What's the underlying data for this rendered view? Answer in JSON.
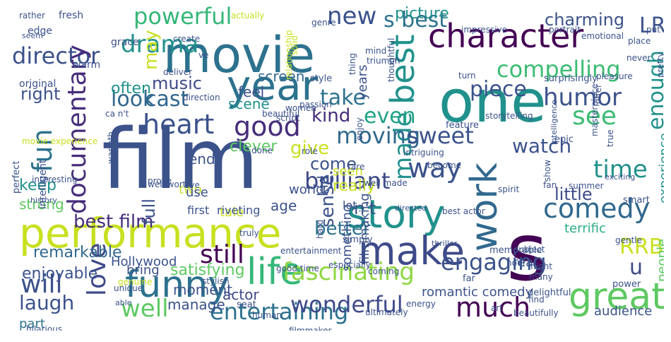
{
  "word_cloud": {
    "palette": [
      "#440154",
      "#472d7b",
      "#3b528b",
      "#2c728e",
      "#21918c",
      "#28ae80",
      "#5ec962",
      "#addc30",
      "#fde725"
    ],
    "words": [
      {
        "text": "film",
        "color": "#3b528b"
      },
      {
        "text": "movie",
        "color": "#2c728e"
      },
      {
        "text": "performance",
        "color": "#c8e020"
      },
      {
        "text": "one",
        "color": "#21918c"
      },
      {
        "text": "s",
        "color": "#440154"
      },
      {
        "text": "character",
        "color": "#440154"
      },
      {
        "text": "year",
        "color": "#2c728e"
      },
      {
        "text": "story",
        "color": "#21918c"
      },
      {
        "text": "work",
        "color": "#31688e"
      },
      {
        "text": "make",
        "color": "#3e4a89"
      },
      {
        "text": "funny",
        "color": "#2c728e"
      },
      {
        "text": "best",
        "color": "#21918c"
      },
      {
        "text": "life",
        "color": "#35b779"
      },
      {
        "text": "time",
        "color": "#21918c"
      },
      {
        "text": "heart",
        "color": "#3b528b"
      },
      {
        "text": "good",
        "color": "#472d7b"
      },
      {
        "text": "way",
        "color": "#3b528b"
      },
      {
        "text": "great",
        "color": "#5ec962"
      },
      {
        "text": "comedy",
        "color": "#31688e"
      },
      {
        "text": "love",
        "color": "#3e4a89"
      },
      {
        "text": "fascinating",
        "color": "#90d743"
      },
      {
        "text": "much",
        "color": "#440154"
      },
      {
        "text": "drama",
        "color": "#21918c"
      },
      {
        "text": "fun",
        "color": "#2c728e"
      },
      {
        "text": "director",
        "color": "#3b528b"
      },
      {
        "text": "documentary",
        "color": "#472d7b"
      },
      {
        "text": "entertaining",
        "color": "#2c728e"
      },
      {
        "text": "well",
        "color": "#5ec962"
      },
      {
        "text": "made",
        "color": "#21918c"
      },
      {
        "text": "look",
        "color": "#31688e"
      },
      {
        "text": "cast",
        "color": "#31688e"
      },
      {
        "text": "humor",
        "color": "#3b528b"
      },
      {
        "text": "see",
        "color": "#3dbc74"
      },
      {
        "text": "enough",
        "color": "#21918c"
      },
      {
        "text": "powerful",
        "color": "#35b779"
      },
      {
        "text": "new",
        "color": "#3b528b"
      },
      {
        "text": "s best",
        "color": "#2c728e"
      },
      {
        "text": "compelling",
        "color": "#3dbc74"
      },
      {
        "text": "moving",
        "color": "#31688e"
      },
      {
        "text": "sweet",
        "color": "#3b528b"
      },
      {
        "text": "engaging",
        "color": "#3b528b"
      },
      {
        "text": "will",
        "color": "#3b528b"
      },
      {
        "text": "still",
        "color": "#440154"
      },
      {
        "text": "brilliant",
        "color": "#3e4a89"
      },
      {
        "text": "wonderful",
        "color": "#3e4a89"
      },
      {
        "text": "laugh",
        "color": "#3b528b"
      },
      {
        "text": "give",
        "color": "#c8e020"
      },
      {
        "text": "take",
        "color": "#2c728e"
      },
      {
        "text": "kind",
        "color": "#472d7b"
      },
      {
        "text": "even",
        "color": "#20a386"
      },
      {
        "text": "watch",
        "color": "#3b528b"
      },
      {
        "text": "RRB",
        "color": "#c8e020"
      },
      {
        "text": "LRB",
        "color": "#3b528b"
      },
      {
        "text": "charming",
        "color": "#3b528b"
      },
      {
        "text": "picture",
        "color": "#21918c"
      },
      {
        "text": "piece",
        "color": "#3b528b"
      },
      {
        "text": "little",
        "color": "#3e4a89"
      },
      {
        "text": "u",
        "color": "#3e4a89"
      },
      {
        "text": "sense",
        "color": "#3b528b"
      },
      {
        "text": "come",
        "color": "#3b528b"
      },
      {
        "text": "better",
        "color": "#2c728e"
      },
      {
        "text": "really",
        "color": "#c8e020"
      },
      {
        "text": "best film",
        "color": "#472d7b"
      },
      {
        "text": "may",
        "color": "#c8e020"
      },
      {
        "text": "music",
        "color": "#3e4a89"
      },
      {
        "text": "often",
        "color": "#21918c"
      },
      {
        "text": "right",
        "color": "#3b528b"
      },
      {
        "text": "feel",
        "color": "#3b528b"
      },
      {
        "text": "screen",
        "color": "#31688e"
      },
      {
        "text": "years",
        "color": "#3b528b"
      },
      {
        "text": "scene",
        "color": "#21918c"
      },
      {
        "text": "clever",
        "color": "#5ec962"
      },
      {
        "text": "remarkable",
        "color": "#31688e"
      },
      {
        "text": "enjoyable",
        "color": "#3b528b"
      },
      {
        "text": "satisfying",
        "color": "#5ec962"
      },
      {
        "text": "keep",
        "color": "#21918c"
      },
      {
        "text": "full",
        "color": "#3b528b"
      },
      {
        "text": "end",
        "color": "#3b528b"
      },
      {
        "text": "strong",
        "color": "#5ec962"
      },
      {
        "text": "age",
        "color": "#3b528b"
      },
      {
        "text": "kid",
        "color": "#3b528b"
      },
      {
        "text": "n't",
        "color": "#3b528b"
      },
      {
        "text": "experience",
        "color": "#21918c"
      },
      {
        "text": "terrific",
        "color": "#28ae80"
      },
      {
        "text": "people",
        "color": "#5ec962"
      },
      {
        "text": "real",
        "color": "#3b528b"
      },
      {
        "text": "manage",
        "color": "#3b528b"
      },
      {
        "text": "part",
        "color": "#2c728e"
      },
      {
        "text": "moment",
        "color": "#3b528b"
      },
      {
        "text": "actor",
        "color": "#3e4a89"
      },
      {
        "text": "tale",
        "color": "#c8e020"
      },
      {
        "text": "bring",
        "color": "#3b528b"
      },
      {
        "text": "Hollywood",
        "color": "#3b528b"
      },
      {
        "text": "first",
        "color": "#3b528b"
      },
      {
        "text": "riveting",
        "color": "#3b528b"
      },
      {
        "text": "two",
        "color": "#c8e020"
      },
      {
        "text": "use",
        "color": "#3b528b"
      },
      {
        "text": "seen",
        "color": "#c8e020"
      },
      {
        "text": "world",
        "color": "#3b528b"
      },
      {
        "text": "lot",
        "color": "#3b528b"
      },
      {
        "text": "something",
        "color": "#3b528b"
      },
      {
        "text": "filmmaking",
        "color": "#3b528b"
      },
      {
        "text": "romantic comedy",
        "color": "#3b528b"
      },
      {
        "text": "audience",
        "color": "#3b528b"
      },
      {
        "text": "fresh",
        "color": "#3b528b"
      },
      {
        "text": "rather",
        "color": "#3b528b"
      },
      {
        "text": "edge",
        "color": "#3b528b"
      },
      {
        "text": "actually",
        "color": "#c8e020"
      },
      {
        "text": "genre",
        "color": "#3b528b"
      },
      {
        "text": "create",
        "color": "#3b528b"
      },
      {
        "text": "ve",
        "color": "#3b528b"
      },
      {
        "text": "thing",
        "color": "#3b528b"
      },
      {
        "text": "solid",
        "color": "#c8e020"
      },
      {
        "text": "warm",
        "color": "#3b528b"
      },
      {
        "text": "original",
        "color": "#3b528b"
      },
      {
        "text": "perfect",
        "color": "#3b528b"
      },
      {
        "text": "intelligent",
        "color": "#3b528b"
      },
      {
        "text": "interesting",
        "color": "#3b528b"
      },
      {
        "text": "grace",
        "color": "#3b528b"
      },
      {
        "text": "seem",
        "color": "#3b528b"
      },
      {
        "text": "relationship",
        "color": "#c8e020"
      },
      {
        "text": "impressive",
        "color": "#3b528b"
      },
      {
        "text": "emotional",
        "color": "#3b528b"
      },
      {
        "text": "portrait",
        "color": "#3b528b"
      },
      {
        "text": "place",
        "color": "#3b528b"
      },
      {
        "text": "put",
        "color": "#3b528b"
      },
      {
        "text": "never",
        "color": "#3b528b"
      },
      {
        "text": "pretty",
        "color": "#3b528b"
      },
      {
        "text": "mind",
        "color": "#3b528b"
      },
      {
        "text": "triumph",
        "color": "#3b528b"
      },
      {
        "text": "enjoy",
        "color": "#3b528b"
      },
      {
        "text": "thoughtful",
        "color": "#3b528b"
      },
      {
        "text": "style",
        "color": "#3b528b"
      },
      {
        "text": "surprisingly",
        "color": "#3b528b"
      },
      {
        "text": "pleasure",
        "color": "#3b528b"
      },
      {
        "text": "turn",
        "color": "#3b528b"
      },
      {
        "text": "offer",
        "color": "#3b528b"
      },
      {
        "text": "intelligence",
        "color": "#3b528b"
      },
      {
        "text": "epic",
        "color": "#3b528b"
      },
      {
        "text": "storytelling",
        "color": "#3b528b"
      },
      {
        "text": "feature",
        "color": "#3b528b"
      },
      {
        "text": "show",
        "color": "#3b528b"
      },
      {
        "text": "true",
        "color": "#3b528b"
      },
      {
        "text": "masterpiece",
        "color": "#3b528b"
      },
      {
        "text": "exciting",
        "color": "#3b528b"
      },
      {
        "text": "summer",
        "color": "#3b528b"
      },
      {
        "text": "smart",
        "color": "#3b528b"
      },
      {
        "text": "best actor",
        "color": "#3b528b"
      },
      {
        "text": "fan",
        "color": "#3b528b"
      },
      {
        "text": "spirit",
        "color": "#3b528b"
      },
      {
        "text": "become",
        "color": "#3b528b"
      },
      {
        "text": "well made",
        "color": "#3b528b"
      },
      {
        "text": "intriguing",
        "color": "#3b528b"
      },
      {
        "text": "rare",
        "color": "#3b528b"
      },
      {
        "text": "done",
        "color": "#3b528b"
      },
      {
        "text": "role",
        "color": "#3b528b"
      },
      {
        "text": "beautiful",
        "color": "#3b528b"
      },
      {
        "text": "script",
        "color": "#3b528b"
      },
      {
        "text": "women",
        "color": "#3b528b"
      },
      {
        "text": "passion",
        "color": "#3b528b"
      },
      {
        "text": "direction",
        "color": "#3b528b"
      },
      {
        "text": "deliver",
        "color": "#3b528b"
      },
      {
        "text": "ca n't",
        "color": "#3b528b"
      },
      {
        "text": "warmth",
        "color": "#3b528b"
      },
      {
        "text": "movie experience",
        "color": "#c8e020"
      },
      {
        "text": "history",
        "color": "#3b528b"
      },
      {
        "text": "prove",
        "color": "#3b528b"
      },
      {
        "text": "well worth",
        "color": "#3b528b"
      },
      {
        "text": "eye",
        "color": "#3b528b"
      },
      {
        "text": "genuine",
        "color": "#c8e020"
      },
      {
        "text": "unique",
        "color": "#3b528b"
      },
      {
        "text": "able",
        "color": "#3b528b"
      },
      {
        "text": "stylish",
        "color": "#3b528b"
      },
      {
        "text": "seat",
        "color": "#3b528b"
      },
      {
        "text": "good time",
        "color": "#3b528b"
      },
      {
        "text": "truly",
        "color": "#3b528b"
      },
      {
        "text": "entertainment",
        "color": "#3b528b"
      },
      {
        "text": "hard",
        "color": "#3b528b"
      },
      {
        "text": "simply",
        "color": "#3b528b"
      },
      {
        "text": "thriller",
        "color": "#3b528b"
      },
      {
        "text": "memorable",
        "color": "#3b528b"
      },
      {
        "text": "hour",
        "color": "#3b528b"
      },
      {
        "text": "subject",
        "color": "#3b528b"
      },
      {
        "text": "might",
        "color": "#3b528b"
      },
      {
        "text": "gentle",
        "color": "#3b528b"
      },
      {
        "text": "directed",
        "color": "#3b528b"
      },
      {
        "text": "especially",
        "color": "#3b528b"
      },
      {
        "text": "coming",
        "color": "#3b528b"
      },
      {
        "text": "far",
        "color": "#3b528b"
      },
      {
        "text": "many",
        "color": "#3b528b"
      },
      {
        "text": "delightful",
        "color": "#3b528b"
      },
      {
        "text": "power",
        "color": "#3b528b"
      },
      {
        "text": "find",
        "color": "#3b528b"
      },
      {
        "text": "art",
        "color": "#3b528b"
      },
      {
        "text": "energy",
        "color": "#3b528b"
      },
      {
        "text": "human",
        "color": "#3b528b"
      },
      {
        "text": "filmmaker",
        "color": "#3b528b"
      },
      {
        "text": "ultimately",
        "color": "#3b528b"
      },
      {
        "text": "beautifully",
        "color": "#3b528b"
      },
      {
        "text": "hilarious",
        "color": "#3b528b"
      }
    ]
  }
}
